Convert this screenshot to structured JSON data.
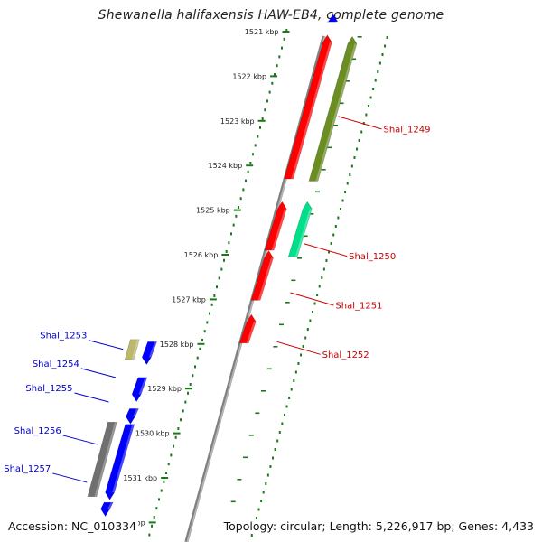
{
  "title": "Shewanella halifaxensis HAW-EB4, complete genome",
  "ticks": [
    {
      "label": "1521 kbp",
      "pos": 1521
    },
    {
      "label": "1522 kbp",
      "pos": 1522
    },
    {
      "label": "1523 kbp",
      "pos": 1523
    },
    {
      "label": "1524 kbp",
      "pos": 1524
    },
    {
      "label": "1525 kbp",
      "pos": 1525
    },
    {
      "label": "1526 kbp",
      "pos": 1526
    },
    {
      "label": "1527 kbp",
      "pos": 1527
    },
    {
      "label": "1528 kbp",
      "pos": 1528
    },
    {
      "label": "1529 kbp",
      "pos": 1529
    },
    {
      "label": "1530 kbp",
      "pos": 1530
    },
    {
      "label": "1531 kbp",
      "pos": 1531
    },
    {
      "label": "kbp",
      "pos": 1532
    }
  ],
  "colors": {
    "red": "#ff0000",
    "olive": "#6b8e23",
    "teal": "#00e08a",
    "khaki": "#bdb76b",
    "blue": "#0000ff",
    "gray": "#707070",
    "tick_green": "#1a7a1a",
    "backbone": "#808080",
    "label_red": "#cc0000",
    "label_blue": "#0000cc"
  },
  "features": [
    {
      "track": "inner",
      "start": 1520.65,
      "end": 1520.78,
      "color": "blue",
      "dir": "rev"
    },
    {
      "track": "inner",
      "start": 1521.12,
      "end": 1524.3,
      "color": "red",
      "dir": "rev"
    },
    {
      "track": "outer",
      "start": 1521.15,
      "end": 1524.35,
      "color": "olive",
      "dir": "rev"
    },
    {
      "track": "inner",
      "start": 1524.85,
      "end": 1525.9,
      "color": "red",
      "dir": "rev"
    },
    {
      "track": "outer",
      "start": 1524.85,
      "end": 1526.05,
      "color": "teal",
      "dir": "rev"
    },
    {
      "track": "inner",
      "start": 1525.95,
      "end": 1527.02,
      "color": "red",
      "dir": "rev"
    },
    {
      "track": "inner",
      "start": 1527.38,
      "end": 1527.98,
      "color": "red",
      "dir": "rev"
    },
    {
      "track": "in1",
      "start": 1527.9,
      "end": 1528.35,
      "color": "khaki",
      "dir": "none"
    },
    {
      "track": "in2",
      "start": 1527.95,
      "end": 1528.42,
      "color": "blue",
      "dir": "fwd"
    },
    {
      "track": "in2",
      "start": 1528.75,
      "end": 1529.25,
      "color": "blue",
      "dir": "fwd"
    },
    {
      "track": "in2",
      "start": 1529.45,
      "end": 1529.75,
      "color": "blue",
      "dir": "fwd"
    },
    {
      "track": "in1",
      "start": 1529.75,
      "end": 1531.42,
      "color": "gray",
      "dir": "none"
    },
    {
      "track": "in2",
      "start": 1529.8,
      "end": 1531.45,
      "color": "blue",
      "dir": "fwd"
    },
    {
      "track": "in2",
      "start": 1531.55,
      "end": 1531.82,
      "color": "blue",
      "dir": "fwd"
    }
  ],
  "gene_labels": [
    {
      "text": "Shal_1249",
      "side": "right",
      "color": "label_red",
      "pos": 1522.9
    },
    {
      "text": "Shal_1250",
      "side": "right",
      "color": "label_red",
      "pos": 1525.75
    },
    {
      "text": "Shal_1251",
      "side": "right",
      "color": "label_red",
      "pos": 1526.85
    },
    {
      "text": "Shal_1252",
      "side": "right",
      "color": "label_red",
      "pos": 1527.95
    },
    {
      "text": "Shal_1253",
      "side": "left",
      "color": "label_blue",
      "pos": 1528.12
    },
    {
      "text": "Shal_1254",
      "side": "left",
      "color": "label_blue",
      "pos": 1528.75
    },
    {
      "text": "Shal_1255",
      "side": "left",
      "color": "label_blue",
      "pos": 1529.3
    },
    {
      "text": "Shal_1256",
      "side": "left",
      "color": "label_blue",
      "pos": 1530.25
    },
    {
      "text": "Shal_1257",
      "side": "left",
      "color": "label_blue",
      "pos": 1531.1
    }
  ],
  "accession": "Accession: NC_010334",
  "summary": "Topology: circular; Length: 5,226,917 bp; Genes: 4,433"
}
